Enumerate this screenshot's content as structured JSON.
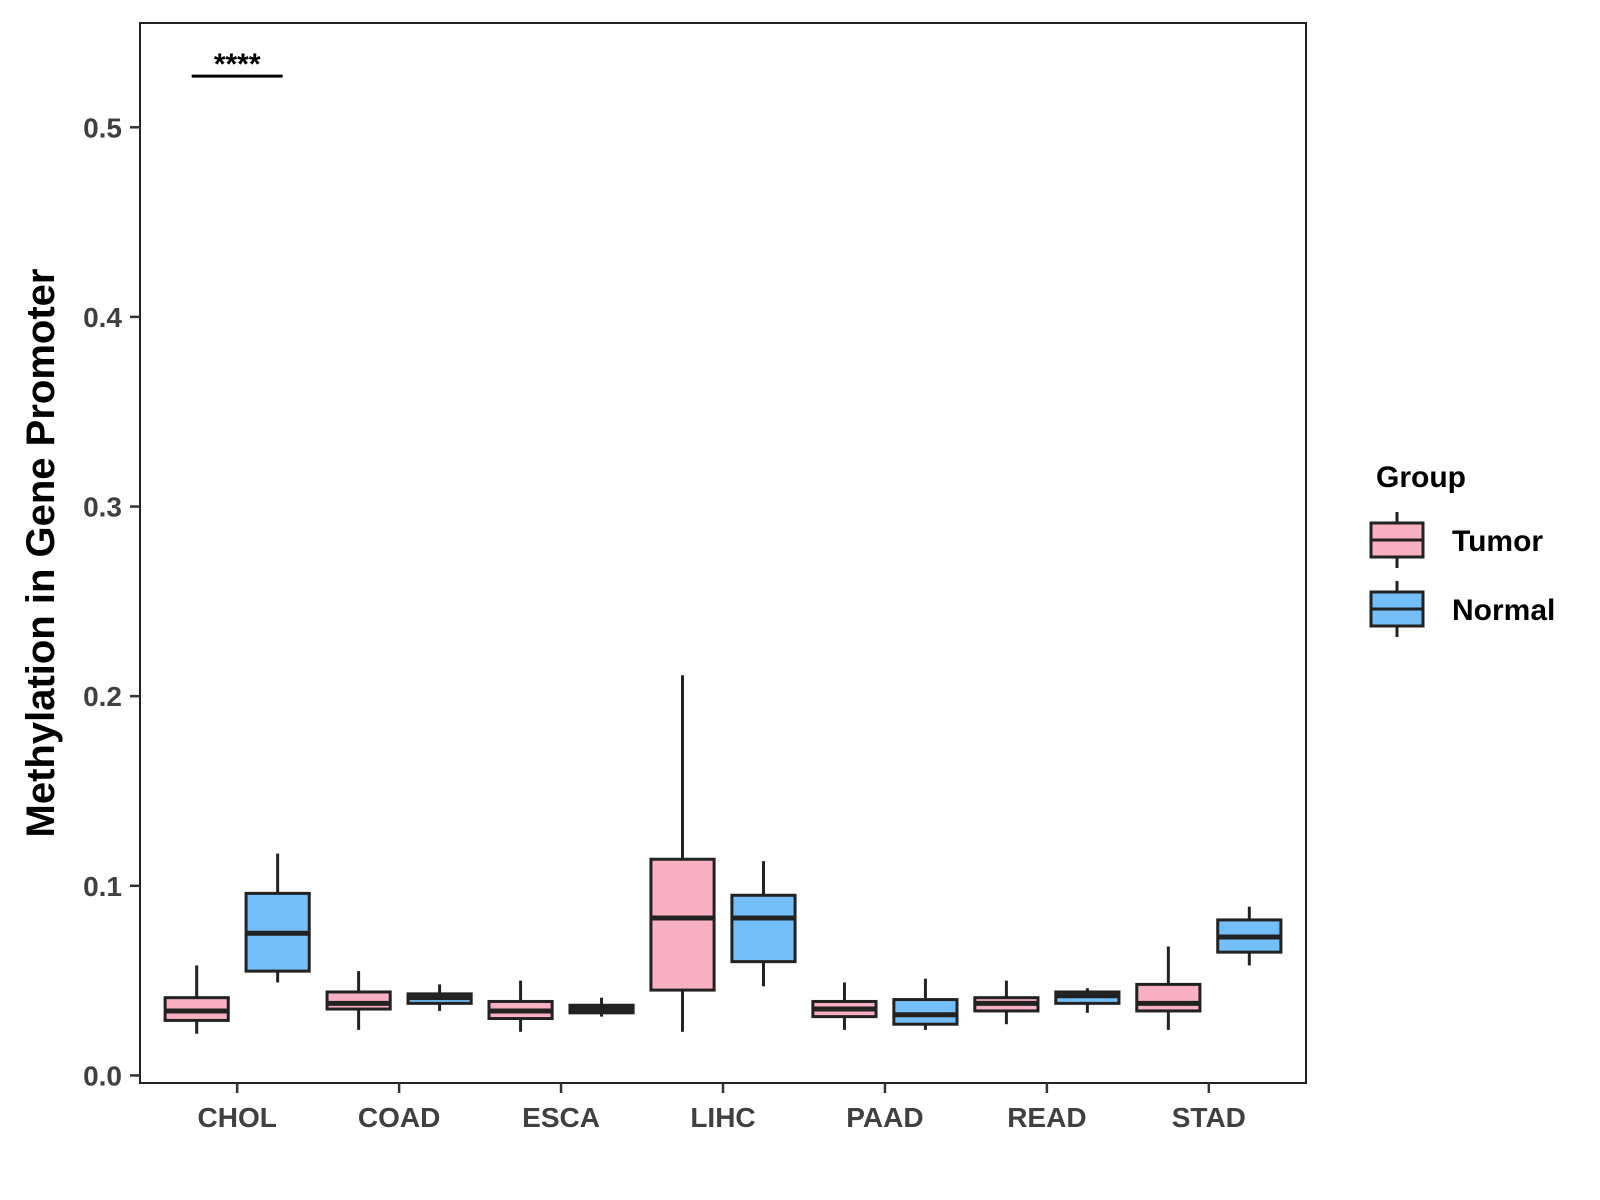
{
  "chart_data": {
    "type": "boxplot",
    "title": "",
    "xlabel": "",
    "ylabel": "Methylation in Gene Promoter",
    "ylim": [
      -0.004,
      0.555
    ],
    "yticks": [
      "0.0",
      "0.1",
      "0.2",
      "0.3",
      "0.4",
      "0.5"
    ],
    "categories": [
      "CHOL",
      "COAD",
      "ESCA",
      "LIHC",
      "PAAD",
      "READ",
      "STAD"
    ],
    "legend": {
      "title": "Group",
      "position": "right",
      "entries": [
        {
          "name": "Tumor",
          "color": "#f9b0c3"
        },
        {
          "name": "Normal",
          "color": "#74bff9"
        }
      ]
    },
    "series": [
      {
        "name": "Tumor",
        "color": "#f9b0c3",
        "boxes": [
          {
            "category": "CHOL",
            "whisker_low": 0.022,
            "q1": 0.029,
            "median": 0.034,
            "q3": 0.041,
            "whisker_high": 0.058
          },
          {
            "category": "COAD",
            "whisker_low": 0.024,
            "q1": 0.035,
            "median": 0.038,
            "q3": 0.044,
            "whisker_high": 0.055
          },
          {
            "category": "ESCA",
            "whisker_low": 0.023,
            "q1": 0.03,
            "median": 0.034,
            "q3": 0.039,
            "whisker_high": 0.05
          },
          {
            "category": "LIHC",
            "whisker_low": 0.023,
            "q1": 0.045,
            "median": 0.083,
            "q3": 0.114,
            "whisker_high": 0.211
          },
          {
            "category": "PAAD",
            "whisker_low": 0.024,
            "q1": 0.031,
            "median": 0.035,
            "q3": 0.039,
            "whisker_high": 0.049
          },
          {
            "category": "READ",
            "whisker_low": 0.027,
            "q1": 0.034,
            "median": 0.038,
            "q3": 0.041,
            "whisker_high": 0.05
          },
          {
            "category": "STAD",
            "whisker_low": 0.024,
            "q1": 0.034,
            "median": 0.038,
            "q3": 0.048,
            "whisker_high": 0.068
          }
        ]
      },
      {
        "name": "Normal",
        "color": "#74bff9",
        "boxes": [
          {
            "category": "CHOL",
            "whisker_low": 0.049,
            "q1": 0.055,
            "median": 0.075,
            "q3": 0.096,
            "whisker_high": 0.117
          },
          {
            "category": "COAD",
            "whisker_low": 0.034,
            "q1": 0.038,
            "median": 0.041,
            "q3": 0.043,
            "whisker_high": 0.048
          },
          {
            "category": "ESCA",
            "whisker_low": 0.031,
            "q1": 0.033,
            "median": 0.035,
            "q3": 0.037,
            "whisker_high": 0.041
          },
          {
            "category": "LIHC",
            "whisker_low": 0.047,
            "q1": 0.06,
            "median": 0.083,
            "q3": 0.095,
            "whisker_high": 0.113
          },
          {
            "category": "PAAD",
            "whisker_low": 0.024,
            "q1": 0.027,
            "median": 0.032,
            "q3": 0.04,
            "whisker_high": 0.051
          },
          {
            "category": "READ",
            "whisker_low": 0.033,
            "q1": 0.038,
            "median": 0.042,
            "q3": 0.044,
            "whisker_high": 0.046
          },
          {
            "category": "STAD",
            "whisker_low": 0.058,
            "q1": 0.065,
            "median": 0.073,
            "q3": 0.082,
            "whisker_high": 0.089
          }
        ]
      }
    ],
    "annotations": [
      {
        "category": "CHOL",
        "text": "****",
        "y": 0.527
      }
    ]
  }
}
